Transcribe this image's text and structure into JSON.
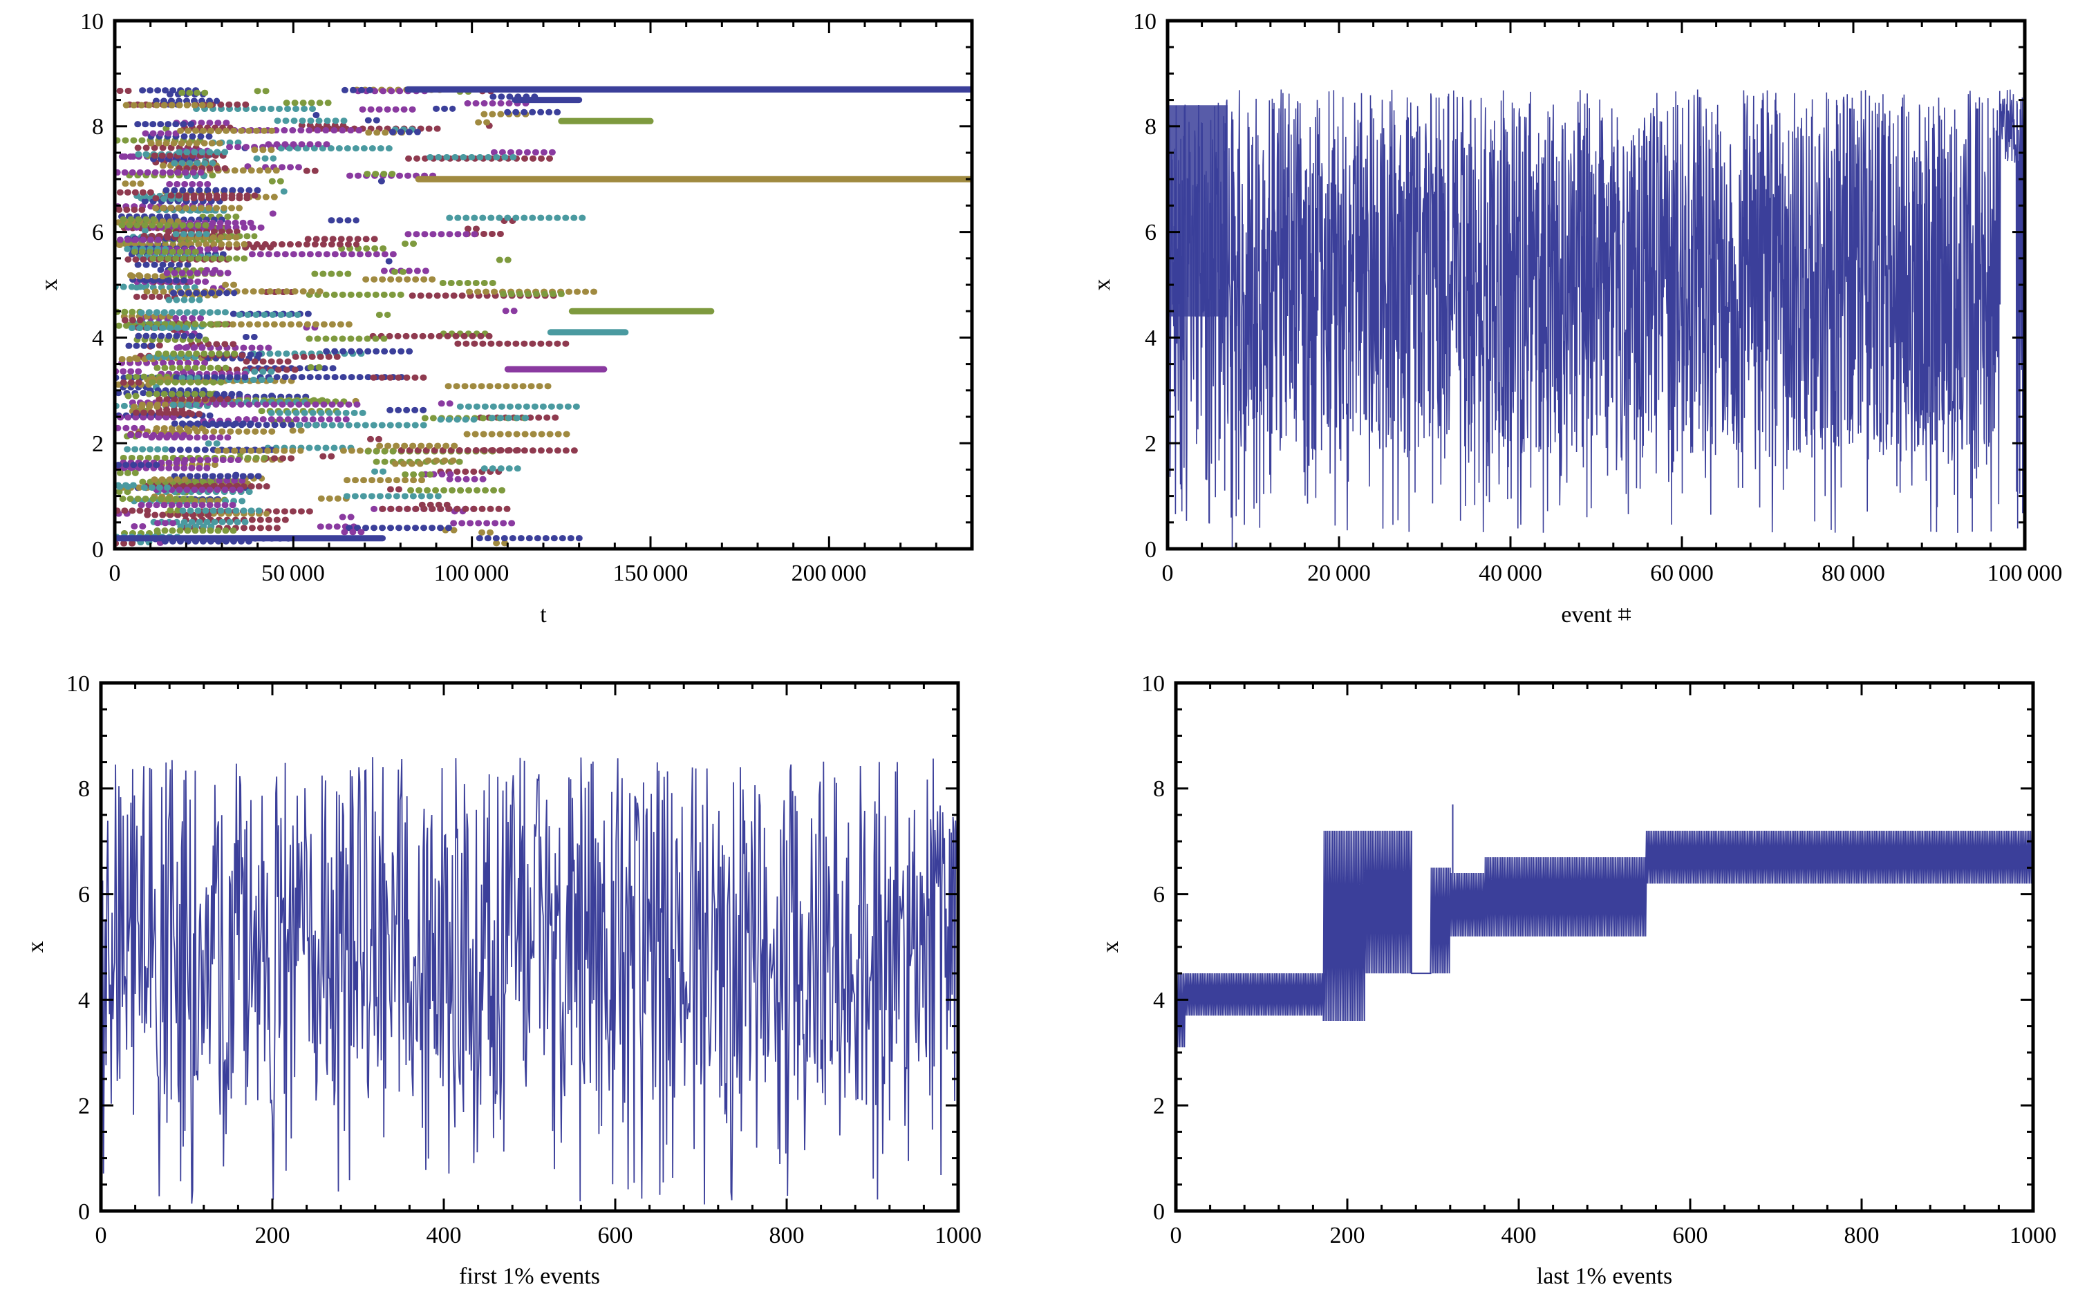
{
  "chart_data": [
    {
      "id": "top-left",
      "type": "scatter",
      "title": "",
      "xlabel": "t",
      "ylabel": "x",
      "xlim": [
        0,
        240000
      ],
      "ylim": [
        0,
        10
      ],
      "xticks": [
        0,
        50000,
        100000,
        150000,
        200000
      ],
      "xtick_labels": [
        "0",
        "50 000",
        "100 000",
        "150 000",
        "200 000"
      ],
      "yticks": [
        0,
        2,
        4,
        6,
        8,
        10
      ],
      "ytick_labels": [
        "0",
        "2",
        "4",
        "6",
        "8",
        "10"
      ],
      "grid": false,
      "legend": "none",
      "series_colors": [
        "#3b3f9a",
        "#8f3a4f",
        "#7e9a3e",
        "#8a3aa0",
        "#4a9aa0",
        "#a08a40"
      ],
      "notes": "Each particle's position x over time; many horizontal dotted trajectories between t=0 and ~150000; two long-lived trajectories at x≈8.7 (blue) and x≈7.0 (olive) reaching t=240000.",
      "long_segments": [
        {
          "series": 0,
          "x_start": 82000,
          "x_end": 240000,
          "y": 8.7
        },
        {
          "series": 5,
          "x_start": 85000,
          "x_end": 240000,
          "y": 7.0
        },
        {
          "series": 0,
          "x_start": 112000,
          "x_end": 130000,
          "y": 8.5
        },
        {
          "series": 2,
          "x_start": 125000,
          "x_end": 150000,
          "y": 8.1
        },
        {
          "series": 2,
          "x_start": 128000,
          "x_end": 167000,
          "y": 4.5
        },
        {
          "series": 4,
          "x_start": 122000,
          "x_end": 143000,
          "y": 4.1
        },
        {
          "series": 3,
          "x_start": 110000,
          "x_end": 137000,
          "y": 3.4
        },
        {
          "series": 0,
          "x_start": 0,
          "x_end": 75000,
          "y": 0.2
        }
      ]
    },
    {
      "id": "top-right",
      "type": "line",
      "title": "",
      "xlabel": "event ⌗",
      "ylabel": "x",
      "xlim": [
        0,
        100000
      ],
      "ylim": [
        0,
        10
      ],
      "xticks": [
        0,
        20000,
        40000,
        60000,
        80000,
        100000
      ],
      "xtick_labels": [
        "0",
        "20 000",
        "40 000",
        "60 000",
        "80 000",
        "100 000"
      ],
      "yticks": [
        0,
        2,
        4,
        6,
        8,
        10
      ],
      "ytick_labels": [
        "0",
        "2",
        "4",
        "6",
        "8",
        "10"
      ],
      "grid": false,
      "legend": "none",
      "color": "#3b3f9a",
      "notes": "Position of the most recent event versus event number; dense oscillation mostly between ~2 and ~8.7, dense band ~4.5–8 at start, settles near 7.2–8.7 after ~97000."
    },
    {
      "id": "bottom-left",
      "type": "line",
      "title": "",
      "xlabel": "first 1% events",
      "ylabel": "x",
      "xlim": [
        0,
        1000
      ],
      "ylim": [
        0,
        10
      ],
      "xticks": [
        0,
        200,
        400,
        600,
        800,
        1000
      ],
      "xtick_labels": [
        "0",
        "200",
        "400",
        "600",
        "800",
        "1000"
      ],
      "yticks": [
        0,
        2,
        4,
        6,
        8,
        10
      ],
      "ytick_labels": [
        "0",
        "2",
        "4",
        "6",
        "8",
        "10"
      ],
      "grid": false,
      "legend": "none",
      "color": "#3b3f9a",
      "notes": "Random oscillation between ~0 and ~8.7 across the first 1000 events."
    },
    {
      "id": "bottom-right",
      "type": "line",
      "title": "",
      "xlabel": "last 1% events",
      "ylabel": "x",
      "xlim": [
        0,
        1000
      ],
      "ylim": [
        0,
        10
      ],
      "xticks": [
        0,
        200,
        400,
        600,
        800,
        1000
      ],
      "xtick_labels": [
        "0",
        "200",
        "400",
        "600",
        "800",
        "1000"
      ],
      "yticks": [
        0,
        2,
        4,
        6,
        8,
        10
      ],
      "ytick_labels": [
        "0",
        "2",
        "4",
        "6",
        "8",
        "10"
      ],
      "grid": false,
      "legend": "none",
      "color": "#3b3f9a",
      "segments": [
        {
          "x_start": 0,
          "x_end": 10,
          "low": 3.1,
          "high": 4.5
        },
        {
          "x_start": 10,
          "x_end": 172,
          "low": 3.7,
          "high": 4.5
        },
        {
          "x_start": 172,
          "x_end": 220,
          "low": 3.6,
          "high": 7.2
        },
        {
          "x_start": 220,
          "x_end": 275,
          "low": 4.5,
          "high": 7.2
        },
        {
          "x_start": 275,
          "x_end": 297,
          "low": 4.5,
          "high": 4.5
        },
        {
          "x_start": 297,
          "x_end": 320,
          "low": 4.5,
          "high": 6.5
        },
        {
          "x_start": 320,
          "x_end": 360,
          "low": 5.2,
          "high": 6.4
        },
        {
          "x_start": 360,
          "x_end": 548,
          "low": 5.2,
          "high": 6.7
        },
        {
          "x_start": 548,
          "x_end": 1000,
          "low": 6.2,
          "high": 7.2
        }
      ],
      "spikes": [
        {
          "x": 323,
          "y": 7.7
        }
      ],
      "notes": "Stepwise bands showing the system converging; oscillation between paired states in each band."
    }
  ]
}
